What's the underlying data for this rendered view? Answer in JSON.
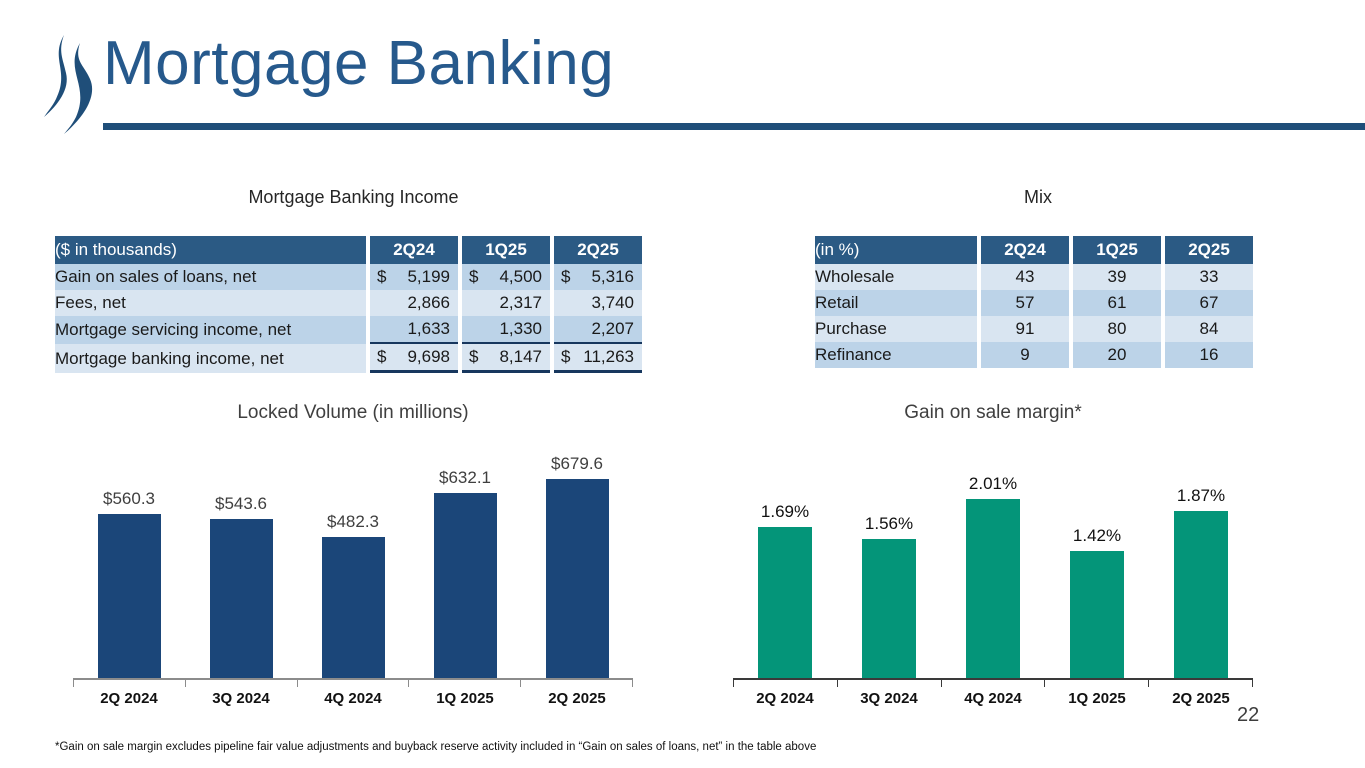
{
  "slide": {
    "title": "Mortgage Banking",
    "page_number": "22",
    "footnote": "*Gain on sale margin excludes pipeline fair value adjustments and buyback reserve activity included in “Gain on sales of loans, net” in the table above",
    "logo_icon": "double-swoosh-logo"
  },
  "colors": {
    "title_blue": "#26598C",
    "underline_blue": "#1F4E79",
    "table_header_blue": "#2B5A84",
    "table_row_light": "#D9E5F1",
    "table_row_medium": "#BCD3E8",
    "total_rule": "#17375E",
    "bar_navy": "#1B4679",
    "bar_green": "#049579"
  },
  "income_table": {
    "caption": "Mortgage Banking Income",
    "unit_label": "($ in thousands)",
    "columns": [
      "2Q24",
      "1Q25",
      "2Q25"
    ],
    "rows": [
      {
        "label": "Gain on sales of loans, net",
        "cells": [
          {
            "d": "$",
            "v": "5,199"
          },
          {
            "d": "$",
            "v": "4,500"
          },
          {
            "d": "$",
            "v": "5,316"
          }
        ]
      },
      {
        "label": "Fees, net",
        "cells": [
          {
            "d": "",
            "v": "2,866"
          },
          {
            "d": "",
            "v": "2,317"
          },
          {
            "d": "",
            "v": "3,740"
          }
        ]
      },
      {
        "label": "Mortgage servicing income, net",
        "cells": [
          {
            "d": "",
            "v": "1,633"
          },
          {
            "d": "",
            "v": "1,330"
          },
          {
            "d": "",
            "v": "2,207"
          }
        ]
      },
      {
        "label": "Mortgage banking income, net",
        "cells": [
          {
            "d": "$",
            "v": "9,698"
          },
          {
            "d": "$",
            "v": "8,147"
          },
          {
            "d": "$",
            "v": "11,263"
          }
        ]
      }
    ]
  },
  "mix_table": {
    "caption": "Mix",
    "unit_label": "(in %)",
    "columns": [
      "2Q24",
      "1Q25",
      "2Q25"
    ],
    "rows": [
      {
        "label": "Wholesale",
        "values": [
          "43",
          "39",
          "33"
        ]
      },
      {
        "label": "Retail",
        "values": [
          "57",
          "61",
          "67"
        ]
      },
      {
        "label": "Purchase",
        "values": [
          "91",
          "80",
          "84"
        ]
      },
      {
        "label": "Refinance",
        "values": [
          "9",
          "20",
          "16"
        ]
      }
    ]
  },
  "chart_data": [
    {
      "type": "bar",
      "title": "Locked Volume (in millions)",
      "categories": [
        "2Q 2024",
        "3Q 2024",
        "4Q 2024",
        "1Q 2025",
        "2Q 2025"
      ],
      "values": [
        560.3,
        543.6,
        482.3,
        632.1,
        679.6
      ],
      "labels": [
        "$560.3",
        "$543.6",
        "$482.3",
        "$632.1",
        "$679.6"
      ],
      "xlabel": "",
      "ylabel": "",
      "ylim": [
        0,
        700
      ],
      "grid": false,
      "legend": "none",
      "bar_color": "#1B4679",
      "axis_color": "#8C8C8C"
    },
    {
      "type": "bar",
      "title": "Gain on sale margin*",
      "categories": [
        "2Q 2024",
        "3Q 2024",
        "4Q 2024",
        "1Q 2025",
        "2Q 2025"
      ],
      "values": [
        1.69,
        1.56,
        2.01,
        1.42,
        1.87
      ],
      "labels": [
        "1.69%",
        "1.56%",
        "2.01%",
        "1.42%",
        "1.87%"
      ],
      "xlabel": "",
      "ylabel": "",
      "ylim": [
        0,
        2.3
      ],
      "grid": false,
      "legend": "none",
      "bar_color": "#049579",
      "axis_color": "#3A3A3A"
    }
  ]
}
